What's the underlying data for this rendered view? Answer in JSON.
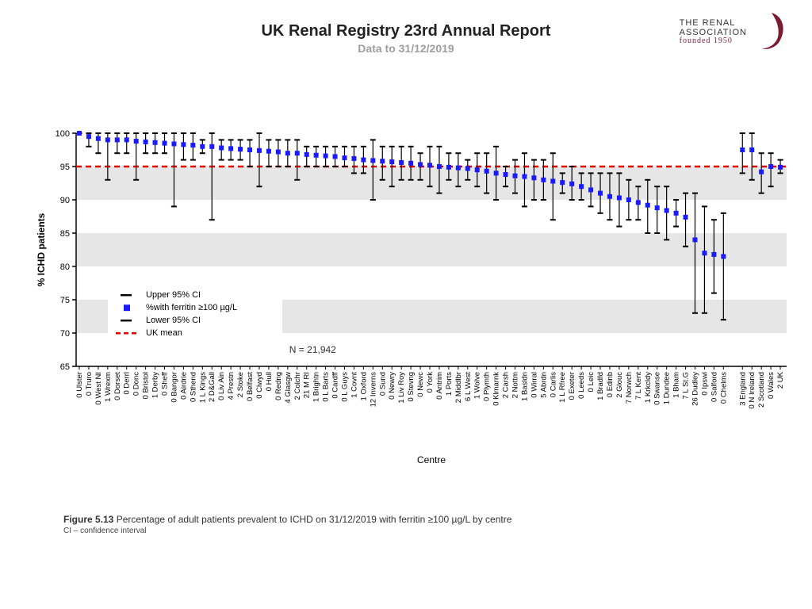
{
  "header": {
    "title": "UK Renal Registry 23rd Annual Report",
    "subtitle": "Data to 31/12/2019"
  },
  "logo": {
    "line1": "THE RENAL",
    "line2": "ASSOCIATION",
    "line3": "founded 1950",
    "swirl_color": "#7b1b32"
  },
  "caption": {
    "figure_label": "Figure 5.13",
    "text": " Percentage of adult patients prevalent to ICHD on 31/12/2019 with ferritin ≥100 µg/L by centre",
    "subtext": "CI – confidence interval"
  },
  "chart": {
    "type": "error-bar-scatter",
    "ylabel": "% ICHD patients",
    "xlabel": "Centre",
    "n_label": "N = 21,942",
    "ylim": [
      65,
      100
    ],
    "ytick_step": 5,
    "uk_mean": 95,
    "uk_mean_color": "#e60000",
    "marker_color": "#1a1aff",
    "error_color": "#000000",
    "band_color": "#e6e6e6",
    "background": "#ffffff",
    "grid_lines": false,
    "marker_size": 6,
    "error_cap_width": 7,
    "legend": {
      "items": [
        {
          "type": "cap",
          "label": "Upper 95% CI"
        },
        {
          "type": "square",
          "label": "%with ferritin ≥100 µg/L",
          "color": "#1a1aff"
        },
        {
          "type": "cap",
          "label": "Lower 95% CI"
        },
        {
          "type": "dash",
          "label": "UK mean",
          "color": "#e60000"
        }
      ],
      "bg": "#ffffff"
    },
    "centres": [
      [
        "0 Ulster",
        100,
        100,
        100
      ],
      [
        "0 Truro",
        99.5,
        98,
        100
      ],
      [
        "0 West NI",
        99.2,
        97,
        100
      ],
      [
        "1 Wrexm",
        99,
        93,
        100
      ],
      [
        "0 Dorset",
        99,
        97,
        100
      ],
      [
        "0 Derrl",
        99,
        97,
        100
      ],
      [
        "0 Donc",
        98.8,
        93,
        100
      ],
      [
        "0 Bristol",
        98.7,
        97,
        100
      ],
      [
        "1 Derby",
        98.6,
        97,
        100
      ],
      [
        "0 Sheff",
        98.5,
        97,
        100
      ],
      [
        "0 Bangor",
        98.4,
        89,
        100
      ],
      [
        "0 Airdrie",
        98.3,
        96,
        100
      ],
      [
        "0 Sthend",
        98.2,
        96,
        100
      ],
      [
        "1 L Kings",
        98,
        97,
        99
      ],
      [
        "2 D&Gall",
        98,
        87,
        100
      ],
      [
        "0 Liv Ain",
        97.8,
        96,
        99
      ],
      [
        "4 Prestn",
        97.7,
        96,
        99
      ],
      [
        "2 Stoke",
        97.6,
        96,
        99
      ],
      [
        "0 Belfast",
        97.5,
        95,
        99
      ],
      [
        "0 Clwyd",
        97.4,
        92,
        100
      ],
      [
        "0 Hull",
        97.3,
        95,
        99
      ],
      [
        "0 Redng",
        97.2,
        95,
        99
      ],
      [
        "4 Glasgw",
        97,
        95,
        99
      ],
      [
        "2 Colchr",
        97,
        93,
        99
      ],
      [
        "21 M RI",
        96.8,
        95,
        98
      ],
      [
        "1 Brightn",
        96.7,
        95,
        98
      ],
      [
        "0 L Barts",
        96.6,
        95,
        98
      ],
      [
        "0 Cardff",
        96.5,
        95,
        98
      ],
      [
        "0 L Guys",
        96.3,
        95,
        98
      ],
      [
        "1 Covnt",
        96.2,
        94,
        98
      ],
      [
        "1 Oxford",
        96,
        94,
        98
      ],
      [
        "12 Inverns",
        95.9,
        90,
        99
      ],
      [
        "0 Sund",
        95.8,
        93,
        98
      ],
      [
        "0 Newry",
        95.7,
        92,
        98
      ],
      [
        "1 Liv Roy",
        95.6,
        93,
        98
      ],
      [
        "0 Stevng",
        95.5,
        93,
        98
      ],
      [
        "0 Newc",
        95.3,
        93,
        97
      ],
      [
        "0 York",
        95.2,
        92,
        98
      ],
      [
        "0 Antrim",
        95,
        91,
        98
      ],
      [
        "1 Ports",
        94.9,
        93,
        97
      ],
      [
        "2 Middlbr",
        94.8,
        92,
        97
      ],
      [
        "6 L West",
        94.7,
        93,
        96
      ],
      [
        "1 Wolve",
        94.5,
        92,
        97
      ],
      [
        "0 Plymth",
        94.3,
        91,
        97
      ],
      [
        "0 Klmarnk",
        94,
        90,
        98
      ],
      [
        "2 Carsh",
        93.8,
        92,
        95
      ],
      [
        "2 Nottm",
        93.6,
        91,
        96
      ],
      [
        "1 Basldn",
        93.5,
        89,
        97
      ],
      [
        "0 Wirral",
        93.3,
        90,
        96
      ],
      [
        "5 Abrdn",
        93,
        90,
        96
      ],
      [
        "0 Carlis",
        92.8,
        87,
        97
      ],
      [
        "1 L Rfree",
        92.6,
        91,
        94
      ],
      [
        "0 Exeter",
        92.4,
        90,
        95
      ],
      [
        "0 Leeds",
        92,
        90,
        94
      ],
      [
        "0 Leic",
        91.5,
        89,
        94
      ],
      [
        "1 Bradfd",
        91,
        88,
        94
      ],
      [
        "0 Edinb",
        90.5,
        87,
        94
      ],
      [
        "2 Glouc",
        90.3,
        86,
        94
      ],
      [
        "7 Norwch",
        90,
        87,
        93
      ],
      [
        "7 L Kent",
        89.6,
        87,
        92
      ],
      [
        "1 Krkcldy",
        89.2,
        85,
        93
      ],
      [
        "0 Swanse",
        88.8,
        85,
        92
      ],
      [
        "1 Dundee",
        88.4,
        84,
        92
      ],
      [
        "1 Bham",
        88,
        86,
        90
      ],
      [
        "7 L St.G",
        87.4,
        83,
        91
      ],
      [
        "26 Dudley",
        84,
        73,
        91
      ],
      [
        "0 Ipswi",
        82,
        73,
        89
      ],
      [
        "0 Salford",
        81.8,
        76,
        87
      ],
      [
        "0 Chelms",
        81.5,
        72,
        88
      ],
      [
        "3 England",
        97.5,
        94,
        100
      ],
      [
        "0 N Ireland",
        97.5,
        93,
        100
      ],
      [
        "2 Scotland",
        94.2,
        91,
        97
      ],
      [
        "0 Wales",
        95,
        92,
        97
      ],
      [
        "2 UK",
        94.9,
        94,
        96
      ]
    ]
  }
}
